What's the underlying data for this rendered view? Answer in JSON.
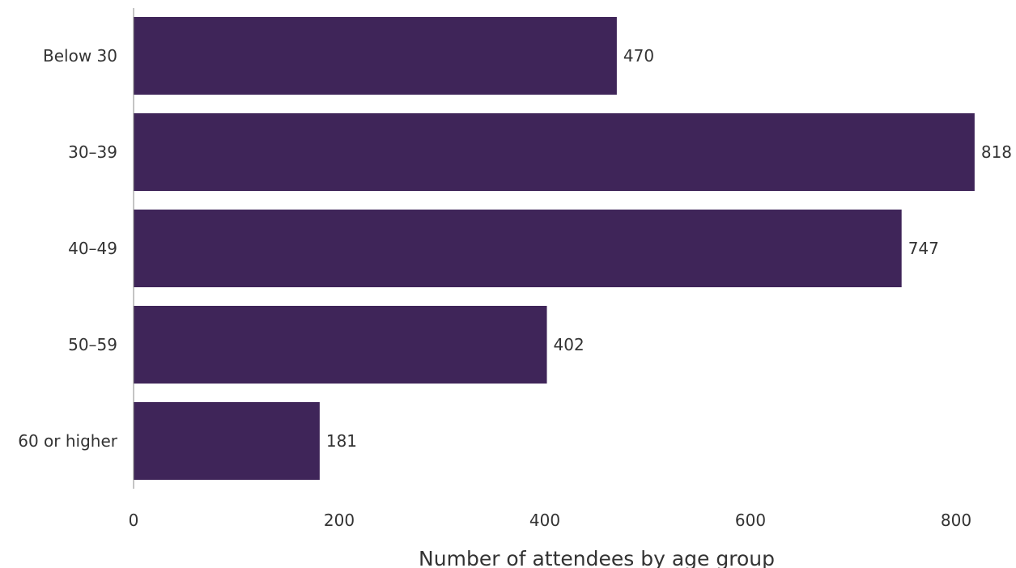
{
  "chart_data": {
    "type": "bar",
    "orientation": "horizontal",
    "categories": [
      "Below 30",
      "30–39",
      "40–49",
      "50–59",
      "60 or higher"
    ],
    "values": [
      470,
      818,
      747,
      402,
      181
    ],
    "xlabel": "Number of attendees by age group",
    "ylabel": "",
    "xlim": [
      0,
      850
    ],
    "xticks": [
      "0",
      "200",
      "400",
      "600",
      "800"
    ],
    "grid": false,
    "legend": "none",
    "bar_color": "#3f2559"
  }
}
